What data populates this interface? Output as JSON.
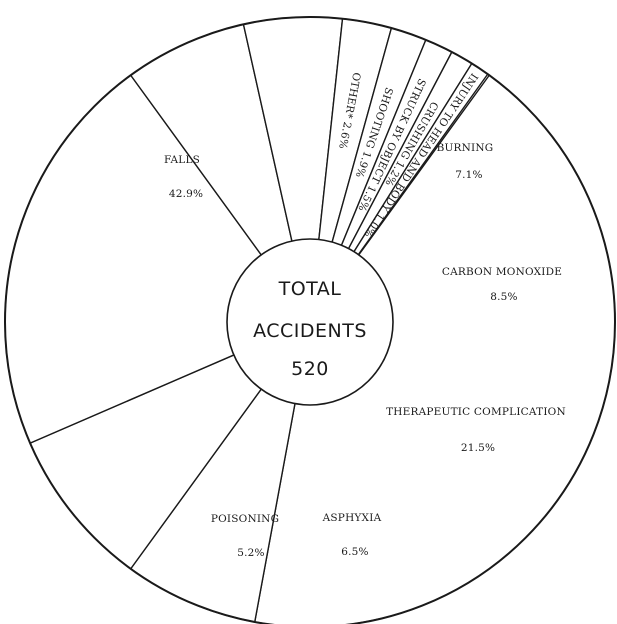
{
  "chart_data": {
    "type": "pie",
    "title": "",
    "center_label": [
      "TOTAL",
      "ACCIDENTS",
      "520"
    ],
    "slices": [
      {
        "label": "FALLS",
        "value": "42.9%",
        "pct": 42.9
      },
      {
        "label": "BURNING",
        "value": "7.1%",
        "pct": 7.1
      },
      {
        "label": "CARBON MONOXIDE",
        "value": "8.5%",
        "pct": 8.5
      },
      {
        "label": "THERAPEUTIC COMPLICATION",
        "value": "21.5%",
        "pct": 21.5
      },
      {
        "label": "ASPHYXIA",
        "value": "6.5%",
        "pct": 6.5
      },
      {
        "label": "POISONING",
        "value": "5.2%",
        "pct": 5.2
      },
      {
        "label": "OTHER*",
        "value": "2.6%",
        "pct": 2.6
      },
      {
        "label": "SHOOTING",
        "value": "1.9%",
        "pct": 1.9
      },
      {
        "label": "STRUCK BY OBJECT",
        "value": "1.5%",
        "pct": 1.5
      },
      {
        "label": "CRUSHING",
        "value": "1.2%",
        "pct": 1.2
      },
      {
        "label": "INJURY TO HEAD AND BODY",
        "value": "1.0%",
        "pct": 1.0
      }
    ],
    "colors": {
      "stroke": "#1a1a1a",
      "fill": "#ffffff"
    }
  }
}
